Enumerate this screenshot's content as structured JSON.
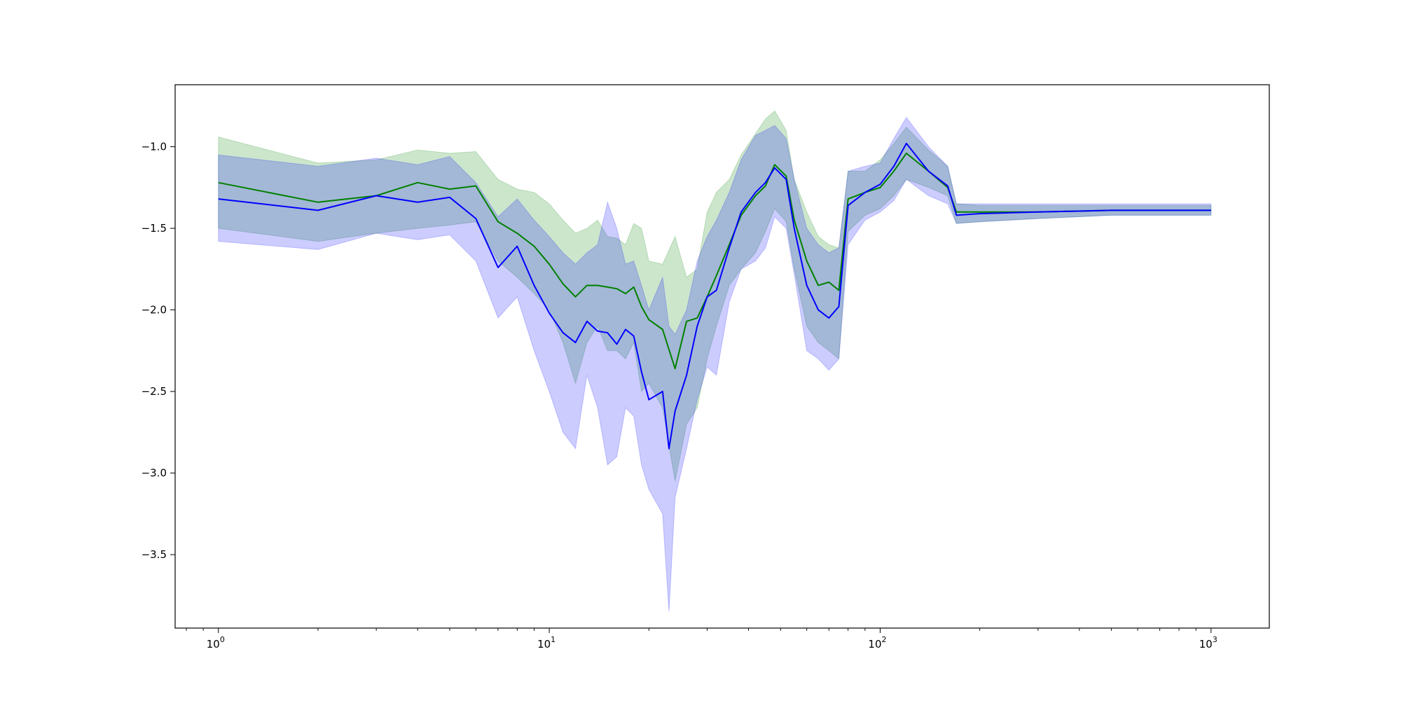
{
  "chart_data": {
    "type": "line",
    "xscale": "log",
    "xlim": [
      0.74,
      1500
    ],
    "ylim": [
      -3.95,
      -0.62
    ],
    "grid": false,
    "xticks_major": [
      {
        "value": 1,
        "base": "10",
        "exp": "0"
      },
      {
        "value": 10,
        "base": "10",
        "exp": "1"
      },
      {
        "value": 100,
        "base": "10",
        "exp": "2"
      },
      {
        "value": 1000,
        "base": "10",
        "exp": "3"
      }
    ],
    "yticks": [
      {
        "value": -1.0,
        "label": "−1.0"
      },
      {
        "value": -1.5,
        "label": "−1.5"
      },
      {
        "value": -2.0,
        "label": "−2.0"
      },
      {
        "value": -2.5,
        "label": "−2.5"
      },
      {
        "value": -3.0,
        "label": "−3.0"
      },
      {
        "value": -3.5,
        "label": "−3.5"
      }
    ],
    "series": [
      {
        "color": "#008000",
        "band_color": "#008000",
        "band_opacity": 0.2,
        "x": [
          1,
          2,
          3,
          4,
          5,
          6,
          7,
          8,
          9,
          10,
          11,
          12,
          13,
          14,
          15,
          16,
          17,
          18,
          19,
          20,
          22,
          24,
          26,
          28,
          30,
          32,
          35,
          38,
          42,
          45,
          48,
          52,
          55,
          60,
          65,
          70,
          75,
          80,
          90,
          100,
          110,
          120,
          140,
          160,
          170,
          200,
          300,
          500,
          700,
          1000
        ],
        "y": [
          -1.22,
          -1.34,
          -1.3,
          -1.22,
          -1.26,
          -1.24,
          -1.46,
          -1.53,
          -1.61,
          -1.72,
          -1.84,
          -1.92,
          -1.85,
          -1.85,
          -1.86,
          -1.87,
          -1.9,
          -1.86,
          -1.98,
          -2.06,
          -2.12,
          -2.36,
          -2.07,
          -2.05,
          -1.92,
          -1.79,
          -1.6,
          -1.42,
          -1.3,
          -1.24,
          -1.11,
          -1.18,
          -1.45,
          -1.7,
          -1.85,
          -1.83,
          -1.88,
          -1.32,
          -1.28,
          -1.25,
          -1.15,
          -1.04,
          -1.15,
          -1.25,
          -1.4,
          -1.4,
          -1.4,
          -1.39,
          -1.39,
          -1.39
        ],
        "lower": [
          -1.5,
          -1.58,
          -1.53,
          -1.5,
          -1.48,
          -1.46,
          -1.7,
          -1.8,
          -1.9,
          -2.0,
          -2.2,
          -2.45,
          -2.2,
          -2.1,
          -2.25,
          -2.25,
          -2.3,
          -2.2,
          -2.5,
          -2.45,
          -2.6,
          -3.05,
          -2.7,
          -2.6,
          -2.3,
          -2.1,
          -1.85,
          -1.75,
          -1.65,
          -1.52,
          -1.38,
          -1.46,
          -1.75,
          -2.1,
          -2.2,
          -2.25,
          -2.3,
          -1.52,
          -1.42,
          -1.38,
          -1.3,
          -1.2,
          -1.25,
          -1.3,
          -1.47,
          -1.46,
          -1.44,
          -1.42,
          -1.42,
          -1.42
        ],
        "upper": [
          -0.94,
          -1.1,
          -1.08,
          -1.02,
          -1.04,
          -1.03,
          -1.2,
          -1.26,
          -1.28,
          -1.35,
          -1.45,
          -1.53,
          -1.5,
          -1.45,
          -1.55,
          -1.56,
          -1.6,
          -1.47,
          -1.5,
          -1.7,
          -1.72,
          -1.55,
          -1.8,
          -1.75,
          -1.4,
          -1.28,
          -1.2,
          -1.05,
          -0.92,
          -0.83,
          -0.78,
          -0.9,
          -1.2,
          -1.4,
          -1.55,
          -1.6,
          -1.62,
          -1.15,
          -1.15,
          -1.08,
          -0.98,
          -0.88,
          -1.02,
          -1.12,
          -1.35,
          -1.36,
          -1.36,
          -1.36,
          -1.36,
          -1.36
        ]
      },
      {
        "color": "#0000ff",
        "band_color": "#0000ff",
        "band_opacity": 0.2,
        "x": [
          1,
          2,
          3,
          4,
          5,
          6,
          7,
          8,
          9,
          10,
          11,
          12,
          13,
          14,
          15,
          16,
          17,
          18,
          19,
          20,
          22,
          23,
          24,
          26,
          28,
          30,
          32,
          35,
          38,
          42,
          45,
          48,
          52,
          55,
          60,
          65,
          70,
          75,
          80,
          90,
          100,
          110,
          120,
          140,
          160,
          170,
          200,
          300,
          500,
          700,
          1000
        ],
        "y": [
          -1.32,
          -1.39,
          -1.3,
          -1.34,
          -1.31,
          -1.44,
          -1.74,
          -1.61,
          -1.85,
          -2.02,
          -2.14,
          -2.2,
          -2.07,
          -2.13,
          -2.14,
          -2.21,
          -2.12,
          -2.16,
          -2.38,
          -2.55,
          -2.5,
          -2.85,
          -2.62,
          -2.4,
          -2.1,
          -1.92,
          -1.88,
          -1.62,
          -1.4,
          -1.28,
          -1.22,
          -1.13,
          -1.2,
          -1.5,
          -1.85,
          -2.0,
          -2.05,
          -1.98,
          -1.36,
          -1.28,
          -1.23,
          -1.12,
          -0.98,
          -1.15,
          -1.24,
          -1.42,
          -1.41,
          -1.4,
          -1.39,
          -1.39,
          -1.39
        ],
        "lower": [
          -1.58,
          -1.63,
          -1.53,
          -1.57,
          -1.54,
          -1.7,
          -2.05,
          -1.92,
          -2.25,
          -2.5,
          -2.75,
          -2.85,
          -2.4,
          -2.6,
          -2.95,
          -2.9,
          -2.6,
          -2.65,
          -2.95,
          -3.1,
          -3.25,
          -3.85,
          -3.15,
          -2.85,
          -2.55,
          -2.35,
          -2.4,
          -1.95,
          -1.75,
          -1.7,
          -1.62,
          -1.43,
          -1.5,
          -1.78,
          -2.25,
          -2.3,
          -2.37,
          -2.3,
          -1.6,
          -1.45,
          -1.4,
          -1.33,
          -1.2,
          -1.3,
          -1.35,
          -1.47,
          -1.46,
          -1.44,
          -1.42,
          -1.42,
          -1.42
        ],
        "upper": [
          -1.05,
          -1.12,
          -1.07,
          -1.11,
          -1.06,
          -1.22,
          -1.43,
          -1.32,
          -1.45,
          -1.55,
          -1.65,
          -1.72,
          -1.65,
          -1.6,
          -1.34,
          -1.5,
          -1.72,
          -1.7,
          -1.85,
          -2.0,
          -1.8,
          -2.1,
          -2.15,
          -2.0,
          -1.7,
          -1.55,
          -1.45,
          -1.28,
          -1.08,
          -0.93,
          -0.9,
          -0.87,
          -0.95,
          -1.2,
          -1.5,
          -1.6,
          -1.65,
          -1.62,
          -1.15,
          -1.12,
          -1.1,
          -0.95,
          -0.82,
          -1.0,
          -1.12,
          -1.35,
          -1.35,
          -1.35,
          -1.35,
          -1.35,
          -1.35
        ]
      }
    ]
  }
}
